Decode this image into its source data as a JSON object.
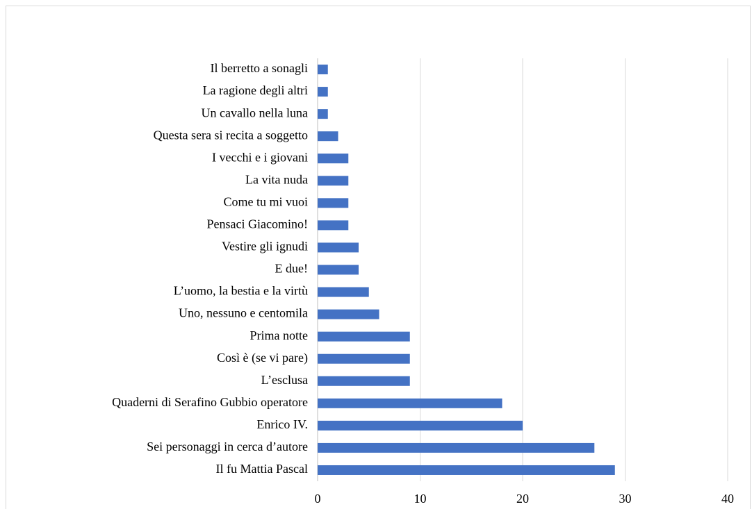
{
  "chart_data": {
    "type": "barh",
    "categories": [
      "Il berretto a sonagli",
      "La ragione degli altri",
      "Un cavallo nella luna",
      "Questa sera si recita a soggetto",
      "I vecchi e i giovani",
      "La vita nuda",
      "Come tu mi vuoi",
      "Pensaci Giacomino!",
      "Vestire gli ignudi",
      "E due!",
      "L’uomo, la bestia e la virtù",
      "Uno, nessuno e centomila",
      "Prima notte",
      "Così è (se vi pare)",
      "L’esclusa",
      "Quaderni di Serafino Gubbio operatore",
      "Enrico IV.",
      "Sei personaggi in cerca d’autore",
      "Il fu Mattia Pascal"
    ],
    "values": [
      1,
      1,
      1,
      2,
      3,
      3,
      3,
      3,
      4,
      4,
      5,
      6,
      9,
      9,
      9,
      18,
      20,
      27,
      29
    ],
    "color": "#4472c4",
    "xlim": [
      0,
      40
    ],
    "xticks": [
      0,
      10,
      20,
      30,
      40
    ],
    "grid": true
  }
}
